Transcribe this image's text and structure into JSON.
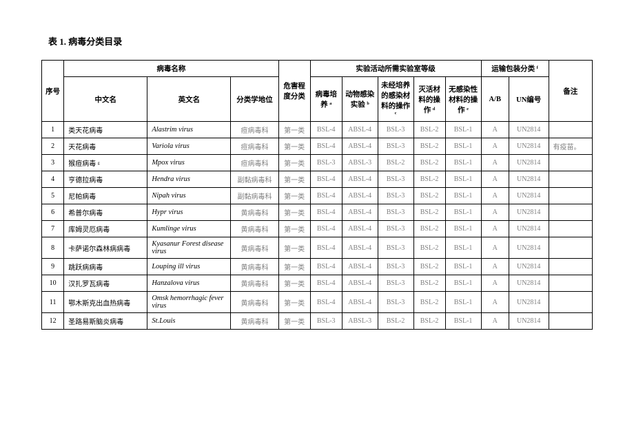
{
  "title": "表 1. 病毒分类目录",
  "headers": {
    "seq": "序号",
    "name_group": "病毒名称",
    "zh": "中文名",
    "en": "英文名",
    "tax": "分类学地位",
    "hazard": "危害程度分类",
    "activity_group": "实验活动所需实验室等级",
    "act1": "病毒培养 ᵃ",
    "act2": "动物感染实验 ᵇ",
    "act3": "未经培养的感染材料的操作 ᶜ",
    "act4": "灭活材料的操作 ᵈ",
    "act5": "无感染性材料的操作 ᵉ",
    "transport_group": "运输包装分类 ᶠ",
    "ab": "A/B",
    "un": "UN编号",
    "note": "备注"
  },
  "rows": [
    {
      "seq": "1",
      "zh": "类天花病毒",
      "en": "Alastrim virus",
      "tax": "痘病毒科",
      "haz": "第一类",
      "a1": "BSL-4",
      "a2": "ABSL-4",
      "a3": "BSL-3",
      "a4": "BSL-2",
      "a5": "BSL-1",
      "ab": "A",
      "un": "UN2814",
      "note": ""
    },
    {
      "seq": "2",
      "zh": "天花病毒",
      "en": "Variola virus",
      "tax": "痘病毒科",
      "haz": "第一类",
      "a1": "BSL-4",
      "a2": "ABSL-4",
      "a3": "BSL-3",
      "a4": "BSL-2",
      "a5": "BSL-1",
      "ab": "A",
      "un": "UN2814",
      "note": "有疫苗。"
    },
    {
      "seq": "3",
      "zh": "猴痘病毒 ᵍ",
      "en": "Mpox virus",
      "tax": "痘病毒科",
      "haz": "第一类",
      "a1": "BSL-3",
      "a2": "ABSL-3",
      "a3": "BSL-2",
      "a4": "BSL-2",
      "a5": "BSL-1",
      "ab": "A",
      "un": "UN2814",
      "note": ""
    },
    {
      "seq": "4",
      "zh": "亨德拉病毒",
      "en": "Hendra virus",
      "tax": "副黏病毒科",
      "haz": "第一类",
      "a1": "BSL-4",
      "a2": "ABSL-4",
      "a3": "BSL-3",
      "a4": "BSL-2",
      "a5": "BSL-1",
      "ab": "A",
      "un": "UN2814",
      "note": ""
    },
    {
      "seq": "5",
      "zh": "尼帕病毒",
      "en": "Nipah virus",
      "tax": "副黏病毒科",
      "haz": "第一类",
      "a1": "BSL-4",
      "a2": "ABSL-4",
      "a3": "BSL-3",
      "a4": "BSL-2",
      "a5": "BSL-1",
      "ab": "A",
      "un": "UN2814",
      "note": ""
    },
    {
      "seq": "6",
      "zh": "希普尔病毒",
      "en": "Hypr virus",
      "tax": "黄病毒科",
      "haz": "第一类",
      "a1": "BSL-4",
      "a2": "ABSL-4",
      "a3": "BSL-3",
      "a4": "BSL-2",
      "a5": "BSL-1",
      "ab": "A",
      "un": "UN2814",
      "note": ""
    },
    {
      "seq": "7",
      "zh": "库姆灵厄病毒",
      "en": "Kumlinge virus",
      "tax": "黄病毒科",
      "haz": "第一类",
      "a1": "BSL-4",
      "a2": "ABSL-4",
      "a3": "BSL-3",
      "a4": "BSL-2",
      "a5": "BSL-1",
      "ab": "A",
      "un": "UN2814",
      "note": ""
    },
    {
      "seq": "8",
      "zh": "卡萨诺尔森林病病毒",
      "en": "Kyasanur Forest disease virus",
      "tax": "黄病毒科",
      "haz": "第一类",
      "a1": "BSL-4",
      "a2": "ABSL-4",
      "a3": "BSL-3",
      "a4": "BSL-2",
      "a5": "BSL-1",
      "ab": "A",
      "un": "UN2814",
      "note": ""
    },
    {
      "seq": "9",
      "zh": "跳跃病病毒",
      "en": "Louping ill virus",
      "tax": "黄病毒科",
      "haz": "第一类",
      "a1": "BSL-4",
      "a2": "ABSL-4",
      "a3": "BSL-3",
      "a4": "BSL-2",
      "a5": "BSL-1",
      "ab": "A",
      "un": "UN2814",
      "note": ""
    },
    {
      "seq": "10",
      "zh": "汉扎罗瓦病毒",
      "en": "Hanzalova virus",
      "tax": "黄病毒科",
      "haz": "第一类",
      "a1": "BSL-4",
      "a2": "ABSL-4",
      "a3": "BSL-3",
      "a4": "BSL-2",
      "a5": "BSL-1",
      "ab": "A",
      "un": "UN2814",
      "note": ""
    },
    {
      "seq": "11",
      "zh": "鄂木斯克出血热病毒",
      "en": "Omsk hemorrhagic fever virus",
      "tax": "黄病毒科",
      "haz": "第一类",
      "a1": "BSL-4",
      "a2": "ABSL-4",
      "a3": "BSL-3",
      "a4": "BSL-2",
      "a5": "BSL-1",
      "ab": "A",
      "un": "UN2814",
      "note": ""
    },
    {
      "seq": "12",
      "zh": "圣路易斯脑炎病毒",
      "en": "St.Louis",
      "tax": "黄病毒科",
      "haz": "第一类",
      "a1": "BSL-3",
      "a2": "ABSL-3",
      "a3": "BSL-2",
      "a4": "BSL-2",
      "a5": "BSL-1",
      "ab": "A",
      "un": "UN2814",
      "note": ""
    }
  ]
}
